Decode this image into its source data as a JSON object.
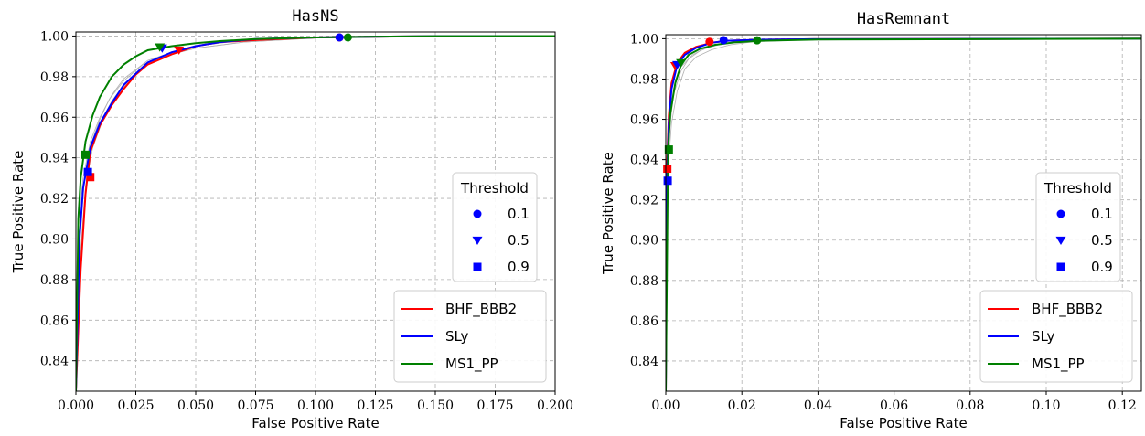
{
  "chart_data": [
    {
      "type": "line",
      "title": "HasNS",
      "xlabel": "False Positive Rate",
      "ylabel": "True Positive Rate",
      "xlim": [
        0.0,
        0.2
      ],
      "ylim": [
        0.825,
        1.002
      ],
      "xticks": [
        0.0,
        0.025,
        0.05,
        0.075,
        0.1,
        0.125,
        0.15,
        0.175,
        0.2
      ],
      "xtick_labels": [
        "0.000",
        "0.025",
        "0.050",
        "0.075",
        "0.100",
        "0.125",
        "0.150",
        "0.175",
        "0.200"
      ],
      "yticks": [
        0.84,
        0.86,
        0.88,
        0.9,
        0.92,
        0.94,
        0.96,
        0.98,
        1.0
      ],
      "ytick_labels": [
        "0.84",
        "0.86",
        "0.88",
        "0.90",
        "0.92",
        "0.94",
        "0.96",
        "0.98",
        "1.00"
      ],
      "grid": true,
      "background_curve_color": "#b0b0b0",
      "background_curves": [
        {
          "x": [
            0,
            0.0015,
            0.003,
            0.006,
            0.01,
            0.015,
            0.02,
            0.03,
            0.04,
            0.05,
            0.07,
            0.1,
            0.15,
            0.2
          ],
          "y": [
            0.825,
            0.9,
            0.925,
            0.944,
            0.957,
            0.968,
            0.976,
            0.986,
            0.991,
            0.994,
            0.997,
            0.999,
            0.9997,
            1.0
          ]
        },
        {
          "x": [
            0,
            0.0012,
            0.003,
            0.006,
            0.01,
            0.015,
            0.02,
            0.03,
            0.04,
            0.05,
            0.07,
            0.1,
            0.15,
            0.2
          ],
          "y": [
            0.825,
            0.91,
            0.93,
            0.948,
            0.96,
            0.971,
            0.979,
            0.988,
            0.992,
            0.995,
            0.998,
            0.9992,
            0.9998,
            1.0
          ]
        },
        {
          "x": [
            0,
            0.002,
            0.004,
            0.007,
            0.011,
            0.016,
            0.022,
            0.03,
            0.04,
            0.05,
            0.07,
            0.1,
            0.15,
            0.2
          ],
          "y": [
            0.825,
            0.895,
            0.926,
            0.945,
            0.958,
            0.969,
            0.978,
            0.986,
            0.991,
            0.994,
            0.997,
            0.999,
            0.9997,
            1.0
          ]
        },
        {
          "x": [
            0,
            0.0018,
            0.0035,
            0.006,
            0.01,
            0.014,
            0.02,
            0.028,
            0.038,
            0.05,
            0.07,
            0.1,
            0.15,
            0.2
          ],
          "y": [
            0.825,
            0.905,
            0.928,
            0.946,
            0.959,
            0.969,
            0.978,
            0.986,
            0.991,
            0.995,
            0.998,
            0.9992,
            0.9998,
            1.0
          ]
        }
      ],
      "series": [
        {
          "name": "BHF_BBB2",
          "color": "#ff0000",
          "x": [
            0,
            0.002,
            0.004,
            0.006,
            0.01,
            0.015,
            0.02,
            0.025,
            0.03,
            0.04,
            0.05,
            0.06,
            0.075,
            0.1,
            0.125,
            0.15,
            0.2
          ],
          "y": [
            0.825,
            0.885,
            0.922,
            0.943,
            0.956,
            0.966,
            0.974,
            0.981,
            0.986,
            0.991,
            0.995,
            0.997,
            0.998,
            0.9993,
            0.9997,
            0.9999,
            1.0
          ],
          "markers": [
            {
              "threshold": "0.1",
              "x": 0.11,
              "y": 0.9993
            },
            {
              "threshold": "0.5",
              "x": 0.043,
              "y": 0.993
            },
            {
              "threshold": "0.9",
              "x": 0.006,
              "y": 0.9305
            }
          ]
        },
        {
          "name": "SLy",
          "color": "#0000ff",
          "x": [
            0,
            0.0015,
            0.003,
            0.006,
            0.01,
            0.015,
            0.02,
            0.03,
            0.04,
            0.05,
            0.06,
            0.075,
            0.1,
            0.125,
            0.15,
            0.2
          ],
          "y": [
            0.825,
            0.9,
            0.925,
            0.945,
            0.957,
            0.967,
            0.976,
            0.987,
            0.992,
            0.995,
            0.997,
            0.9985,
            0.9993,
            0.9997,
            0.9999,
            1.0
          ],
          "markers": [
            {
              "threshold": "0.1",
              "x": 0.11,
              "y": 0.9993
            },
            {
              "threshold": "0.5",
              "x": 0.036,
              "y": 0.994
            },
            {
              "threshold": "0.9",
              "x": 0.005,
              "y": 0.933
            }
          ]
        },
        {
          "name": "MS1_PP",
          "color": "#008000",
          "x": [
            0,
            0.001,
            0.002,
            0.004,
            0.007,
            0.01,
            0.015,
            0.02,
            0.025,
            0.03,
            0.04,
            0.05,
            0.06,
            0.075,
            0.1,
            0.125,
            0.15,
            0.2
          ],
          "y": [
            0.825,
            0.91,
            0.93,
            0.948,
            0.961,
            0.97,
            0.98,
            0.986,
            0.99,
            0.993,
            0.995,
            0.9965,
            0.9975,
            0.9985,
            0.9993,
            0.9997,
            0.9999,
            1.0
          ],
          "markers": [
            {
              "threshold": "0.1",
              "x": 0.1135,
              "y": 0.9993
            },
            {
              "threshold": "0.5",
              "x": 0.035,
              "y": 0.9945
            },
            {
              "threshold": "0.9",
              "x": 0.004,
              "y": 0.9415
            }
          ]
        }
      ],
      "threshold_legend": {
        "title": "Threshold",
        "color": "#0000ff",
        "entries": [
          {
            "label": "0.1",
            "marker": "circle"
          },
          {
            "label": "0.5",
            "marker": "triangle-down"
          },
          {
            "label": "0.9",
            "marker": "square"
          }
        ]
      },
      "legend_position": "bottom-right"
    },
    {
      "type": "line",
      "title": "HasRemnant",
      "xlabel": "False Positive Rate",
      "ylabel": "True Positive Rate",
      "xlim": [
        0.0,
        0.125
      ],
      "ylim": [
        0.825,
        1.002
      ],
      "xticks": [
        0.0,
        0.02,
        0.04,
        0.06,
        0.08,
        0.1,
        0.12
      ],
      "xtick_labels": [
        "0.00",
        "0.02",
        "0.04",
        "0.06",
        "0.08",
        "0.10",
        "0.12"
      ],
      "yticks": [
        0.84,
        0.86,
        0.88,
        0.9,
        0.92,
        0.94,
        0.96,
        0.98,
        1.0
      ],
      "ytick_labels": [
        "0.84",
        "0.86",
        "0.88",
        "0.90",
        "0.92",
        "0.94",
        "0.96",
        "0.98",
        "1.00"
      ],
      "grid": true,
      "background_curve_color": "#b0b0b0",
      "background_curves": [
        {
          "x": [
            0,
            0.0005,
            0.001,
            0.002,
            0.004,
            0.006,
            0.009,
            0.013,
            0.018,
            0.025,
            0.04,
            0.06,
            0.125
          ],
          "y": [
            0.825,
            0.93,
            0.955,
            0.972,
            0.984,
            0.99,
            0.994,
            0.997,
            0.9985,
            0.9992,
            0.9996,
            0.9998,
            1.0
          ]
        },
        {
          "x": [
            0,
            0.0004,
            0.001,
            0.002,
            0.004,
            0.007,
            0.01,
            0.015,
            0.02,
            0.03,
            0.05,
            0.125
          ],
          "y": [
            0.825,
            0.94,
            0.96,
            0.975,
            0.986,
            0.992,
            0.995,
            0.9975,
            0.9988,
            0.9994,
            0.9998,
            1.0
          ]
        },
        {
          "x": [
            0,
            0.0006,
            0.0015,
            0.003,
            0.005,
            0.008,
            0.012,
            0.017,
            0.023,
            0.035,
            0.06,
            0.125
          ],
          "y": [
            0.825,
            0.935,
            0.958,
            0.974,
            0.985,
            0.991,
            0.9945,
            0.997,
            0.9985,
            0.9993,
            0.9997,
            1.0
          ]
        }
      ],
      "series": [
        {
          "name": "BHF_BBB2",
          "color": "#ff0000",
          "x": [
            0,
            0.0003,
            0.0008,
            0.0015,
            0.003,
            0.005,
            0.008,
            0.012,
            0.016,
            0.025,
            0.04,
            0.125
          ],
          "y": [
            0.825,
            0.936,
            0.962,
            0.978,
            0.988,
            0.993,
            0.996,
            0.998,
            0.999,
            0.9995,
            0.9998,
            1.0
          ],
          "markers": [
            {
              "threshold": "0.1",
              "x": 0.0115,
              "y": 0.9985
            },
            {
              "threshold": "0.5",
              "x": 0.0025,
              "y": 0.9865
            },
            {
              "threshold": "0.9",
              "x": 0.0004,
              "y": 0.9355
            }
          ]
        },
        {
          "name": "SLy",
          "color": "#0000ff",
          "x": [
            0,
            0.0003,
            0.0008,
            0.0015,
            0.003,
            0.005,
            0.008,
            0.012,
            0.016,
            0.025,
            0.04,
            0.125
          ],
          "y": [
            0.825,
            0.93,
            0.958,
            0.975,
            0.987,
            0.992,
            0.9955,
            0.998,
            0.999,
            0.9995,
            0.9998,
            1.0
          ],
          "markers": [
            {
              "threshold": "0.1",
              "x": 0.0152,
              "y": 0.9993
            },
            {
              "threshold": "0.5",
              "x": 0.003,
              "y": 0.987
            },
            {
              "threshold": "0.9",
              "x": 0.0005,
              "y": 0.9295
            }
          ]
        },
        {
          "name": "MS1_PP",
          "color": "#008000",
          "x": [
            0,
            0.0006,
            0.0012,
            0.0025,
            0.004,
            0.006,
            0.009,
            0.013,
            0.018,
            0.025,
            0.04,
            0.125
          ],
          "y": [
            0.825,
            0.945,
            0.963,
            0.978,
            0.987,
            0.992,
            0.995,
            0.997,
            0.9982,
            0.999,
            0.9996,
            1.0
          ],
          "markers": [
            {
              "threshold": "0.1",
              "x": 0.024,
              "y": 0.9992
            },
            {
              "threshold": "0.5",
              "x": 0.004,
              "y": 0.988
            },
            {
              "threshold": "0.9",
              "x": 0.0008,
              "y": 0.945
            }
          ]
        }
      ],
      "threshold_legend": {
        "title": "Threshold",
        "color": "#0000ff",
        "entries": [
          {
            "label": "0.1",
            "marker": "circle"
          },
          {
            "label": "0.5",
            "marker": "triangle-down"
          },
          {
            "label": "0.9",
            "marker": "square"
          }
        ]
      },
      "legend_position": "bottom-right"
    }
  ]
}
